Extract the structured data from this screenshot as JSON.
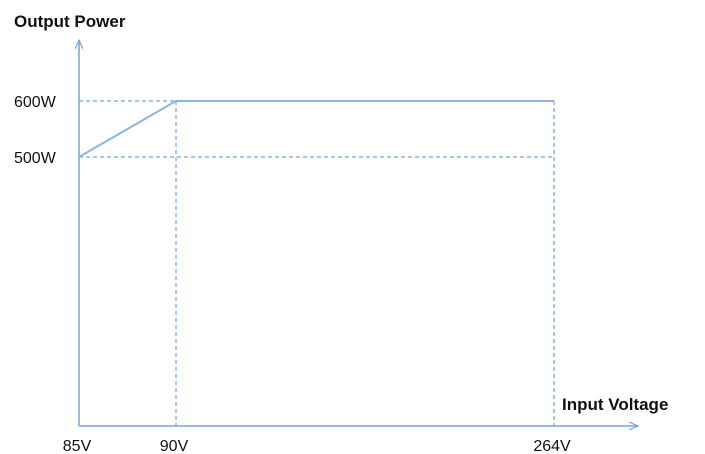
{
  "chart_data": {
    "type": "line",
    "title": "",
    "ylabel": "Output Power",
    "xlabel": "Input Voltage",
    "x_ticks": [
      {
        "value": 85,
        "label": "85V"
      },
      {
        "value": 90,
        "label": "90V"
      },
      {
        "value": 264,
        "label": "264V"
      }
    ],
    "y_ticks": [
      {
        "value": 500,
        "label": "500W"
      },
      {
        "value": 600,
        "label": "600W"
      }
    ],
    "series": [
      {
        "x": [
          85,
          90,
          264
        ],
        "y": [
          500,
          600,
          600
        ]
      }
    ],
    "guides": {
      "horizontal": [
        500,
        600
      ],
      "vertical": [
        90,
        264
      ]
    },
    "grid": false,
    "legend": "none",
    "colors": {
      "line": "#8eb4e3",
      "axis": "#7aa3d8",
      "guide": "#5b8fd0",
      "text": "#111111"
    }
  }
}
